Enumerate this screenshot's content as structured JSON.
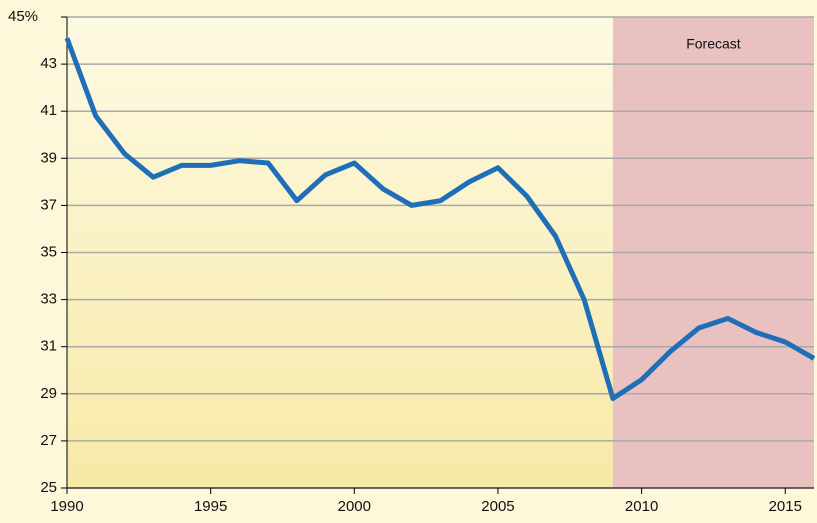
{
  "chart_data": {
    "type": "line",
    "x": [
      1990,
      1991,
      1992,
      1993,
      1994,
      1995,
      1996,
      1997,
      1998,
      1999,
      2000,
      2001,
      2002,
      2003,
      2004,
      2005,
      2006,
      2007,
      2008,
      2009,
      2010,
      2011,
      2012,
      2013,
      2014,
      2015,
      2016
    ],
    "series": [
      {
        "color": "#1f6fb8",
        "values": [
          44.1,
          40.8,
          39.2,
          38.2,
          38.7,
          38.7,
          38.9,
          38.8,
          37.2,
          38.3,
          38.8,
          37.7,
          37.0,
          37.2,
          38.0,
          38.6,
          37.4,
          35.7,
          33.0,
          28.8,
          29.6,
          30.8,
          31.8,
          32.2,
          31.6,
          31.2,
          30.5
        ]
      }
    ],
    "xlim": [
      1990,
      2016
    ],
    "xticks": [
      1990,
      1995,
      2000,
      2005,
      2010,
      2015
    ],
    "ylim": [
      25,
      45
    ],
    "yticks": [
      25,
      27,
      29,
      31,
      33,
      35,
      37,
      39,
      41,
      43,
      {
        "value": 45,
        "label": "45%"
      }
    ],
    "grid": true,
    "forecast_start": 2009,
    "forecast_label": "Forecast"
  }
}
